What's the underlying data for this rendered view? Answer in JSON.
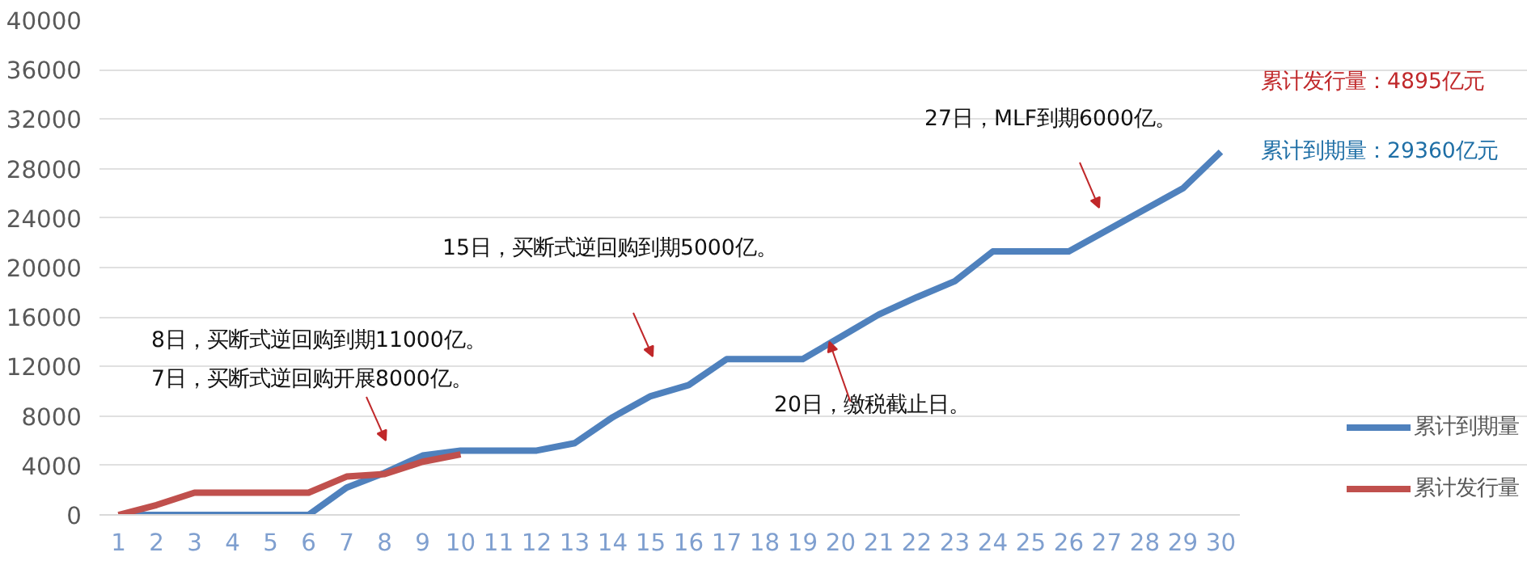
{
  "chart_data": {
    "type": "line",
    "x": [
      1,
      2,
      3,
      4,
      5,
      6,
      7,
      8,
      9,
      10,
      11,
      12,
      13,
      14,
      15,
      16,
      17,
      18,
      19,
      20,
      21,
      22,
      23,
      24,
      25,
      26,
      27,
      28,
      29,
      30
    ],
    "series": [
      {
        "name": "累计到期量",
        "color": "#4f81bd",
        "values": [
          0,
          0,
          0,
          0,
          0,
          0,
          2200,
          3400,
          4800,
          5200,
          5200,
          5200,
          5800,
          7900,
          9600,
          10500,
          12600,
          12600,
          12600,
          14400,
          16200,
          17600,
          18900,
          21300,
          21300,
          21300,
          23000,
          24700,
          26400,
          29360
        ]
      },
      {
        "name": "累计发行量",
        "color": "#c0504d",
        "x": [
          1,
          2,
          3,
          4,
          5,
          6,
          7,
          8,
          9,
          10
        ],
        "values": [
          0,
          800,
          1800,
          1800,
          1800,
          1800,
          3100,
          3300,
          4300,
          4895
        ]
      }
    ],
    "xlim": [
      0.5,
      30.5
    ],
    "xticks": [
      1,
      2,
      3,
      4,
      5,
      6,
      7,
      8,
      9,
      10,
      11,
      12,
      13,
      14,
      15,
      16,
      17,
      18,
      19,
      20,
      21,
      22,
      23,
      24,
      25,
      26,
      27,
      28,
      29,
      30
    ],
    "ylim": [
      0,
      40000
    ],
    "yticks": [
      0,
      4000,
      8000,
      12000,
      16000,
      20000,
      24000,
      28000,
      32000,
      36000,
      40000
    ],
    "grid": "y",
    "legend": "bottom right",
    "line_style": "solid",
    "marker": "none",
    "annotations": [
      "8日，买断式逆回购到期11000亿。\n7日，买断式逆回购开展8000亿。",
      "15日，买断式逆回购到期5000亿。",
      {
        "text": "20日，缴税截止日。",
        "x": 19.7,
        "y": 14000
      },
      "27日，MLF到期6000亿。",
      "累计发行量：4895亿元",
      "累计到期量：29360亿元"
    ]
  }
}
